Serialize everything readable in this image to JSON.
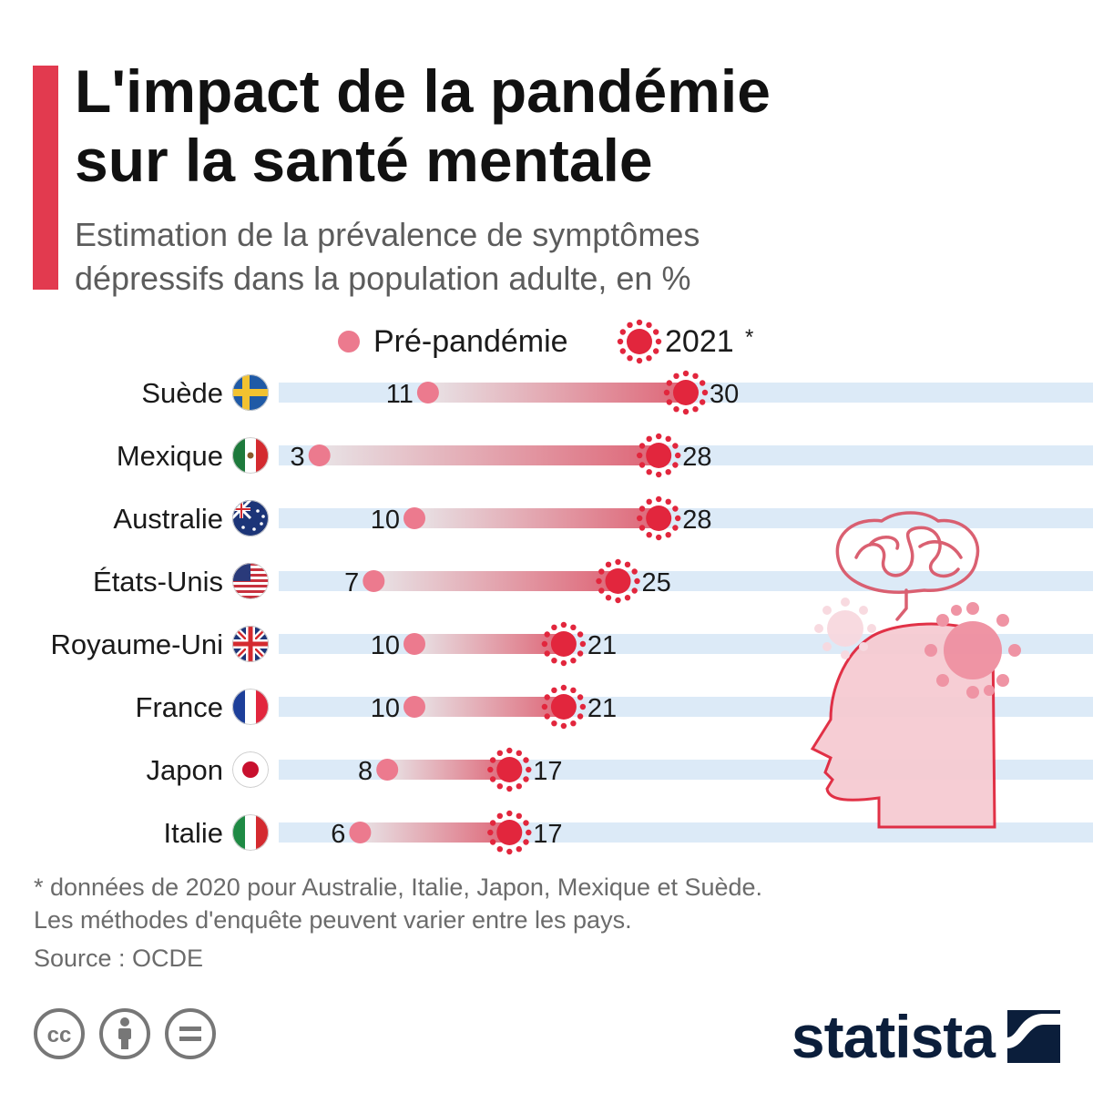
{
  "header": {
    "title_line1": "L'impact de la pandémie",
    "title_line2": "sur la santé mentale",
    "subtitle_line1": "Estimation de la prévalence de symptômes",
    "subtitle_line2": "dépressifs dans la population adulte, en %"
  },
  "chart_data": {
    "type": "dumbbell",
    "title": "L'impact de la pandémie sur la santé mentale",
    "subtitle": "Estimation de la prévalence de symptômes dépressifs dans la population adulte, en %",
    "legend": {
      "pre_label": "Pré-pandémie",
      "post_label": "2021",
      "post_marker": "*",
      "position": "top"
    },
    "x_range": [
      0,
      60
    ],
    "categories": [
      "Suède",
      "Mexique",
      "Australie",
      "États-Unis",
      "Royaume-Uni",
      "France",
      "Japon",
      "Italie"
    ],
    "series": [
      {
        "name": "Pré-pandémie",
        "values": [
          11,
          3,
          10,
          7,
          10,
          10,
          8,
          6
        ]
      },
      {
        "name": "2021",
        "values": [
          30,
          28,
          28,
          25,
          21,
          21,
          17,
          17
        ]
      }
    ],
    "flags": [
      "sweden-flag-icon",
      "mexico-flag-icon",
      "australia-flag-icon",
      "usa-flag-icon",
      "uk-flag-icon",
      "france-flag-icon",
      "japan-flag-icon",
      "italy-flag-icon"
    ]
  },
  "footnote": {
    "line1": "* données de 2020 pour Australie, Italie, Japon, Mexique et Suède.",
    "line2": "Les méthodes d'enquête peuvent varier entre les pays."
  },
  "source": "Source : OCDE",
  "brand": {
    "name": "statista"
  },
  "license_icons": [
    "cc-icon",
    "attribution-icon",
    "no-derivatives-icon"
  ],
  "illustration": {
    "icon": "head-with-brain-icon"
  },
  "colors": {
    "accent": "#e23a4f",
    "pre_marker": "#ec7a8e",
    "post_marker": "#e2263d",
    "track": "#dceaf7",
    "brand_navy": "#0b1e3b"
  }
}
